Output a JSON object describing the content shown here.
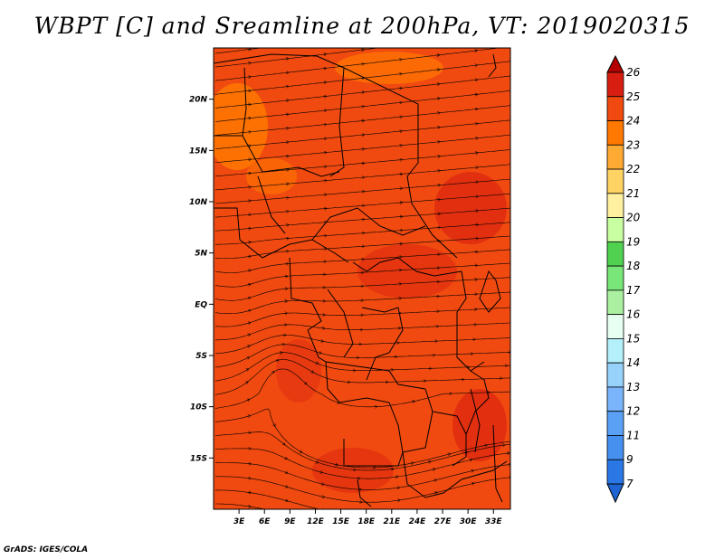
{
  "title": "WBPT [C] and Sreamline at 200hPa, VT: 2019020315",
  "credit": "GrADS: IGES/COLA",
  "map": {
    "lon_range": [
      0,
      35
    ],
    "lat_range": [
      -20,
      25
    ],
    "lat_ticks": [
      {
        "label": "20N",
        "lat": 20
      },
      {
        "label": "15N",
        "lat": 15
      },
      {
        "label": "10N",
        "lat": 10
      },
      {
        "label": "5N",
        "lat": 5
      },
      {
        "label": "EQ",
        "lat": 0
      },
      {
        "label": "5S",
        "lat": -5
      },
      {
        "label": "10S",
        "lat": -10
      },
      {
        "label": "15S",
        "lat": -15
      }
    ],
    "lon_ticks": [
      {
        "label": "3E",
        "lon": 3
      },
      {
        "label": "6E",
        "lon": 6
      },
      {
        "label": "9E",
        "lon": 9
      },
      {
        "label": "12E",
        "lon": 12
      },
      {
        "label": "15E",
        "lon": 15
      },
      {
        "label": "18E",
        "lon": 18
      },
      {
        "label": "21E",
        "lon": 21
      },
      {
        "label": "24E",
        "lon": 24
      },
      {
        "label": "27E",
        "lon": 27
      },
      {
        "label": "30E",
        "lon": 30
      },
      {
        "label": "33E",
        "lon": 33
      }
    ],
    "dominant_fill_color": "#f04a10"
  },
  "colorbar": {
    "labels": [
      "7",
      "9",
      "11",
      "12",
      "13",
      "14",
      "15",
      "16",
      "17",
      "18",
      "19",
      "20",
      "21",
      "22",
      "23",
      "24",
      "25",
      "26"
    ],
    "colors": [
      "#1e64d2",
      "#2a78e6",
      "#4690f0",
      "#5aa0f5",
      "#7ab4fa",
      "#96d2fa",
      "#b4f0fa",
      "#e6fff0",
      "#aaf0a0",
      "#78e678",
      "#50d250",
      "#c8ffa0",
      "#fff0a0",
      "#ffd264",
      "#ffaa32",
      "#ff7800",
      "#f04a10",
      "#d81e10",
      "#b40000"
    ],
    "arrow_low_color": "#1e64d2",
    "arrow_high_color": "#b40000"
  }
}
